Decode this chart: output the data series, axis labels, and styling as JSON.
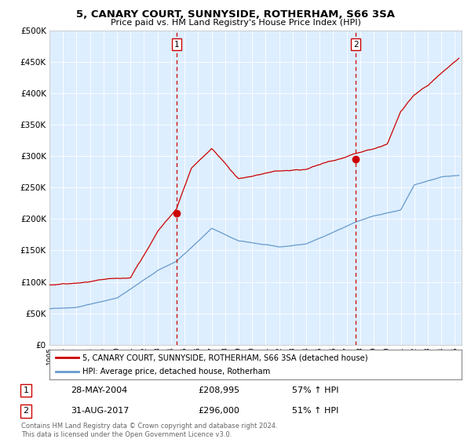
{
  "title": "5, CANARY COURT, SUNNYSIDE, ROTHERHAM, S66 3SA",
  "subtitle": "Price paid vs. HM Land Registry's House Price Index (HPI)",
  "background_color": "#ffffff",
  "plot_bg_color": "#ddeeff",
  "ylabel_ticks": [
    "£0",
    "£50K",
    "£100K",
    "£150K",
    "£200K",
    "£250K",
    "£300K",
    "£350K",
    "£400K",
    "£450K",
    "£500K"
  ],
  "ytick_values": [
    0,
    50000,
    100000,
    150000,
    200000,
    250000,
    300000,
    350000,
    400000,
    450000,
    500000
  ],
  "ylim": [
    0,
    500000
  ],
  "xlim_start": 1995.0,
  "xlim_end": 2025.5,
  "red_line_color": "#cc0000",
  "blue_line_color": "#6699cc",
  "vline_color": "#cc0000",
  "sale1_x": 2004.41,
  "sale1_y": 208995,
  "sale1_label": "1",
  "sale2_x": 2017.67,
  "sale2_y": 296000,
  "sale2_label": "2",
  "legend_line1": "5, CANARY COURT, SUNNYSIDE, ROTHERHAM, S66 3SA (detached house)",
  "legend_line2": "HPI: Average price, detached house, Rotherham",
  "table_row1": [
    "1",
    "28-MAY-2004",
    "£208,995",
    "57% ↑ HPI"
  ],
  "table_row2": [
    "2",
    "31-AUG-2017",
    "£296,000",
    "51% ↑ HPI"
  ],
  "footer": "Contains HM Land Registry data © Crown copyright and database right 2024.\nThis data is licensed under the Open Government Licence v3.0.",
  "hpi_base_years": [
    1995,
    1997,
    2000,
    2003,
    2004.41,
    2007,
    2009,
    2012,
    2014,
    2017.67,
    2019,
    2021,
    2022,
    2024,
    2025.3
  ],
  "hpi_base_vals": [
    57000,
    60000,
    75000,
    118000,
    133000,
    185000,
    165000,
    155000,
    160000,
    196000,
    205000,
    215000,
    255000,
    268000,
    270000
  ],
  "red_base_years": [
    1995,
    1997,
    1999,
    2001,
    2003,
    2004.41,
    2005.5,
    2007,
    2009,
    2011,
    2012,
    2014,
    2015,
    2017.67,
    2019,
    2020,
    2021,
    2022,
    2023,
    2024,
    2025.3
  ],
  "red_base_vals": [
    95000,
    97000,
    100000,
    102000,
    175000,
    210000,
    275000,
    305000,
    255000,
    265000,
    268000,
    270000,
    278000,
    296000,
    302000,
    308000,
    360000,
    385000,
    400000,
    420000,
    445000
  ]
}
